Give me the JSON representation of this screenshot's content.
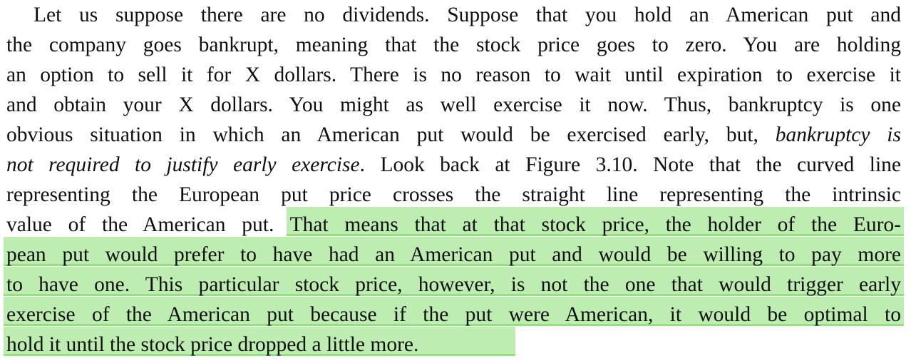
{
  "lines": [
    [
      {
        "t": "Let us suppose there are no dividends. Suppose that you hold an American put and"
      }
    ],
    [
      {
        "t": "the company goes bankrupt, meaning that the stock price goes to zero. You are holding"
      }
    ],
    [
      {
        "t": "an option to sell it for X dollars. There is no reason to wait until expiration to exercise it"
      }
    ],
    [
      {
        "t": "and obtain your X dollars. You might as well exercise it now. Thus, bankruptcy is one"
      }
    ],
    [
      {
        "t": "obvious situation in which an American put would be exercised early, but, "
      },
      {
        "t": "bankruptcy is",
        "i": true
      }
    ],
    [
      {
        "t": "not required to justify early exercise",
        "i": true
      },
      {
        "t": ". Look back at Figure 3.10. Note that the curved line"
      }
    ],
    [
      {
        "t": "representing the European put price crosses the straight line representing the intrinsic"
      }
    ],
    [
      {
        "t": "value of the American put. "
      },
      {
        "t": "That means that at that stock price, the holder of the Euro-"
      }
    ],
    [
      {
        "t": "pean put would prefer to have had an American put and would be willing to pay more"
      }
    ],
    [
      {
        "t": "to have one. This particular stock price, however, is not the one that would trigger early"
      }
    ],
    [
      {
        "t": "exercise of the American put because if the put were American, it would be optimal to"
      }
    ],
    [
      {
        "t": "hold it until the stock price dropped a little more."
      }
    ]
  ],
  "highlight_color": "#bdedb0",
  "highlight_underline_color": "#95df82"
}
